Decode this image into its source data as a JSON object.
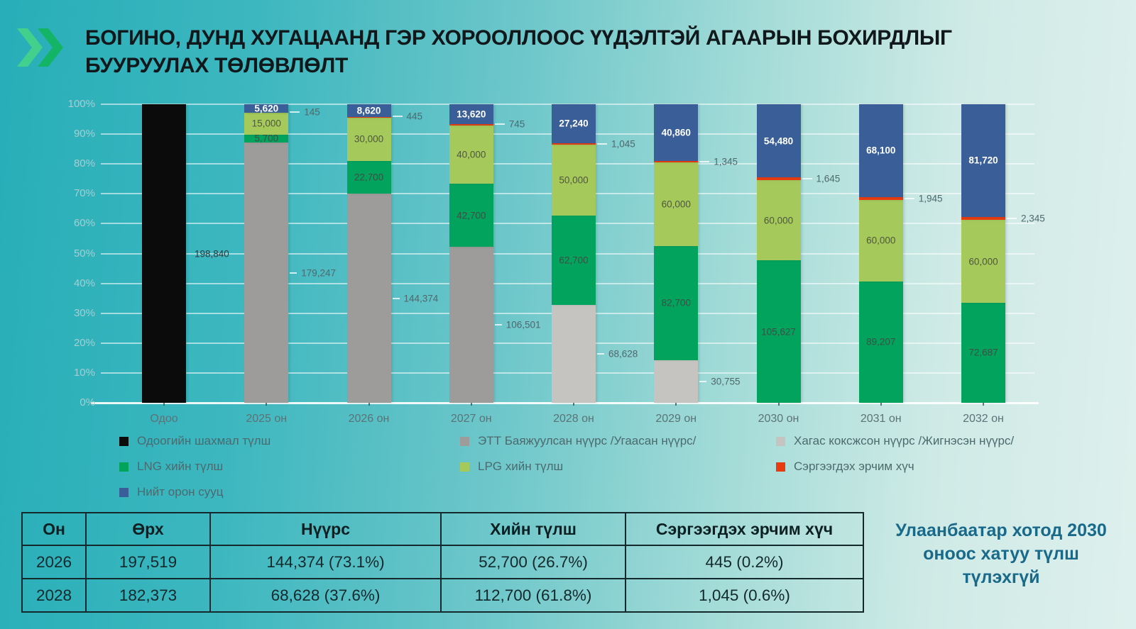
{
  "title": {
    "line1": "БОГИНО, ДУНД ХУГАЦААНД ГЭР ХОРООЛЛООС ҮҮДЭЛТЭЙ АГААРЫН БОХИРДЛЫГ",
    "line2": "БУУРУУЛАХ ТӨЛӨВЛӨЛТ"
  },
  "chart_data": {
    "type": "bar",
    "stacked": "percent",
    "title": "",
    "xlabel": "",
    "ylabel": "",
    "ylim": [
      0,
      100
    ],
    "grid": true,
    "legend_position": "bottom",
    "y_ticks": [
      "0%",
      "10%",
      "20%",
      "30%",
      "40%",
      "50%",
      "60%",
      "70%",
      "80%",
      "90%",
      "100%"
    ],
    "categories": [
      "Одоо",
      "2025 он",
      "2026 он",
      "2027 он",
      "2028 он",
      "2029 он",
      "2030 он",
      "2031 он",
      "2032 он"
    ],
    "series": [
      {
        "name": "Одоогийн шахмал түлш",
        "color": "#0b0b0b",
        "values": [
          198840,
          0,
          0,
          0,
          0,
          0,
          0,
          0,
          0
        ]
      },
      {
        "name": "ЭТТ Баяжуулсан нүүрс /Угаасан нүүрс/",
        "color": "#9d9c9a",
        "values": [
          0,
          179247,
          144374,
          106501,
          0,
          0,
          0,
          0,
          0
        ]
      },
      {
        "name": "Хагас коксжсон нүүрс /Жигнэсэн нүүрс/",
        "color": "#c6c4c1",
        "values": [
          0,
          0,
          0,
          0,
          68628,
          30755,
          0,
          0,
          0
        ]
      },
      {
        "name": "LNG хийн түлш",
        "color": "#02a35d",
        "values": [
          0,
          5700,
          22700,
          42700,
          62700,
          82700,
          105627,
          89207,
          72687
        ]
      },
      {
        "name": "LPG хийн түлш",
        "color": "#a6c95b",
        "values": [
          0,
          15000,
          30000,
          40000,
          50000,
          60000,
          60000,
          60000,
          60000
        ]
      },
      {
        "name": "Сэргээгдэх эрчим хүч",
        "color": "#e93b10",
        "values": [
          0,
          145,
          445,
          745,
          1045,
          1345,
          1645,
          1945,
          2345
        ]
      },
      {
        "name": "Нийт орон сууц",
        "color": "#3a5f98",
        "values": [
          0,
          5620,
          8620,
          13620,
          27240,
          40860,
          54480,
          68100,
          81720
        ]
      }
    ]
  },
  "table": {
    "headers": [
      "Он",
      "Өрх",
      "Нүүрс",
      "Хийн түлш",
      "Сэргээгдэх эрчим хүч"
    ],
    "rows": [
      [
        "2026",
        "197,519",
        "144,374 (73.1%)",
        "52,700 (26.7%)",
        "445 (0.2%)"
      ],
      [
        "2028",
        "182,373",
        "68,628 (37.6%)",
        "112,700 (61.8%)",
        "1,045 (0.6%)"
      ]
    ]
  },
  "note": "Улаанбаатар хотод 2030 оноос хатуу түлш түлэхгүй",
  "icon_colors": {
    "chevron_light": "#43d08d",
    "chevron_dark": "#14b466"
  }
}
